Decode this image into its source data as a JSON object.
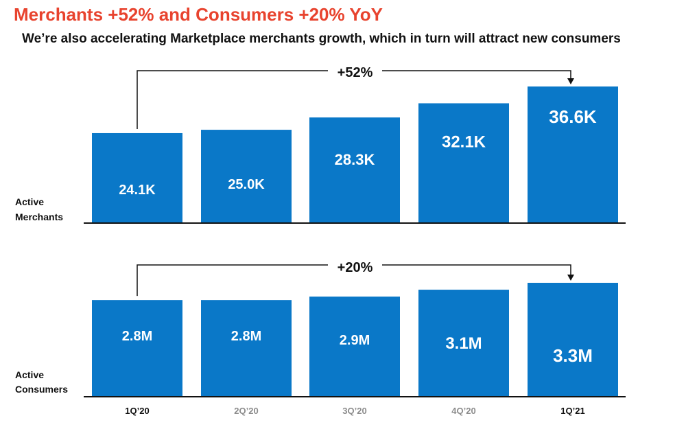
{
  "title": "Merchants +52% and Consumers +20% YoY",
  "subtitle": "We’re also accelerating Marketplace merchants growth, which in turn will attract new consumers",
  "colors": {
    "title": "#e8432e",
    "bar": "#0a78c8",
    "bar_label": "#ffffff",
    "axis": "#111111",
    "tick_active": "#111111",
    "tick_muted": "#8c8c8c"
  },
  "chart_data": [
    {
      "type": "bar",
      "title": "",
      "ylabel": "Active Merchants",
      "unit": "K",
      "categories": [
        "1Q'20",
        "2Q'20",
        "3Q'20",
        "4Q'20",
        "1Q'21"
      ],
      "values": [
        24.1,
        25.0,
        28.3,
        32.1,
        36.6
      ],
      "labels": [
        "24.1K",
        "25.0K",
        "28.3K",
        "32.1K",
        "36.6K"
      ],
      "annotation": {
        "text": "+52%",
        "from": "1Q'20",
        "to": "1Q'21"
      }
    },
    {
      "type": "bar",
      "title": "",
      "ylabel": "Active Consumers",
      "unit": "M",
      "categories": [
        "1Q'20",
        "2Q'20",
        "3Q'20",
        "4Q'20",
        "1Q'21"
      ],
      "values": [
        2.8,
        2.8,
        2.9,
        3.1,
        3.3
      ],
      "labels": [
        "2.8M",
        "2.8M",
        "2.9M",
        "3.1M",
        "3.3M"
      ],
      "annotation": {
        "text": "+20%",
        "from": "1Q'20",
        "to": "1Q'21"
      }
    }
  ],
  "x_axis": {
    "ticks": [
      "1Q’20",
      "2Q’20",
      "3Q’20",
      "4Q’20",
      "1Q’21"
    ],
    "highlighted": [
      0,
      4
    ]
  },
  "ylabels": {
    "merchants": [
      "Active",
      "Merchants"
    ],
    "consumers": [
      "Active",
      "Consumers"
    ]
  }
}
